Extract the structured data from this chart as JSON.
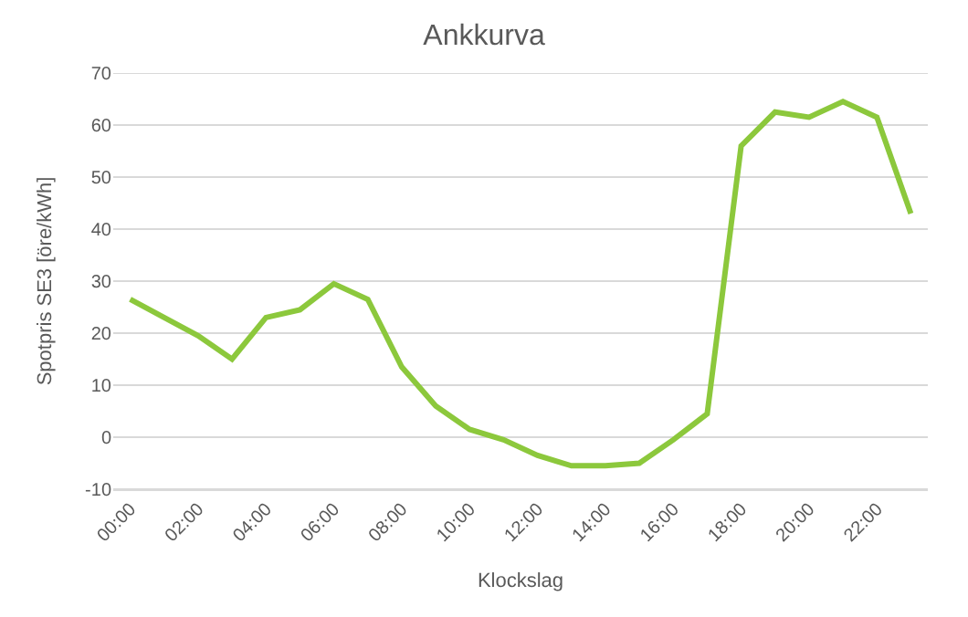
{
  "chart_data": {
    "type": "line",
    "title": "Ankkurva",
    "xlabel": "Klockslag",
    "ylabel": "Spotpris SE3 [öre/kWh]",
    "categories": [
      "00:00",
      null,
      "02:00",
      null,
      "04:00",
      null,
      "06:00",
      null,
      "08:00",
      null,
      "10:00",
      null,
      "12:00",
      null,
      "14:00",
      null,
      "16:00",
      null,
      "18:00",
      null,
      "20:00",
      null,
      "22:00",
      null
    ],
    "series": [
      {
        "color": "#8cc83c",
        "values": [
          26.5,
          23,
          19.5,
          15,
          23,
          24.5,
          29.5,
          26.5,
          13.5,
          6,
          1.5,
          -0.5,
          -3.5,
          -5.5,
          -5.5,
          -5,
          -0.5,
          4.5,
          56,
          62.5,
          61.5,
          64.5,
          61.5,
          43
        ]
      }
    ],
    "ylim": [
      -10,
      70
    ],
    "yticks": [
      -10,
      0,
      10,
      20,
      30,
      40,
      50,
      60,
      70
    ],
    "grid": "y",
    "marker": "none",
    "line_style": "solid"
  }
}
